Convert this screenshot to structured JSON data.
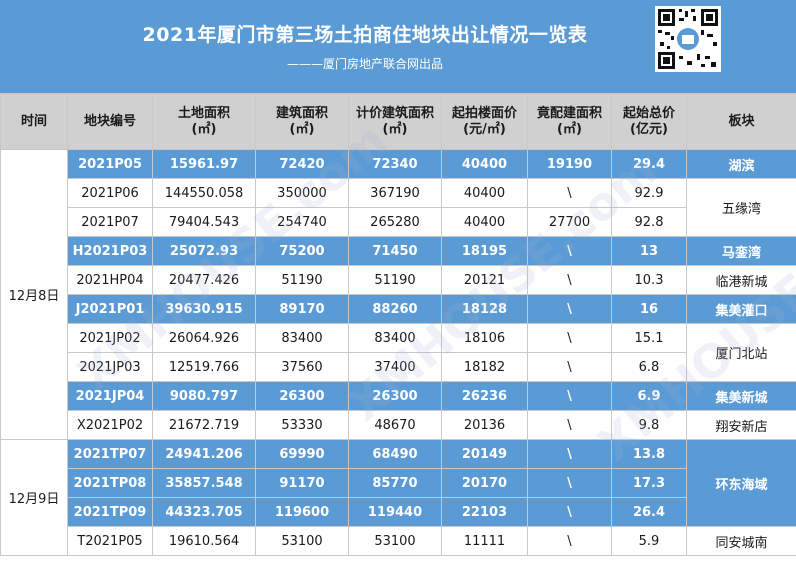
{
  "header": {
    "title": "2021年厦门市第三场土拍商住地块出让情况一览表",
    "subtitle": "———厦门房地产联合网出品"
  },
  "columns": [
    "时间",
    "地块编号",
    "土地面积\n(㎡)",
    "建筑面积\n(㎡)",
    "计价建筑面积\n(㎡)",
    "起拍楼面价\n(元/㎡)",
    "竟配建面积\n(㎡)",
    "起始总价\n(亿元)",
    "板块"
  ],
  "dates": [
    "12月8日",
    "12月9日"
  ],
  "rows": [
    {
      "id": "2021P05",
      "land": "15961.97",
      "build": "72420",
      "priced": "72340",
      "floor": "40400",
      "match": "19190",
      "total": "29.4"
    },
    {
      "id": "2021P06",
      "land": "144550.058",
      "build": "350000",
      "priced": "367190",
      "floor": "40400",
      "match": "\\",
      "total": "92.9"
    },
    {
      "id": "2021P07",
      "land": "79404.543",
      "build": "254740",
      "priced": "265280",
      "floor": "40400",
      "match": "27700",
      "total": "92.8"
    },
    {
      "id": "H2021P03",
      "land": "25072.93",
      "build": "75200",
      "priced": "71450",
      "floor": "18195",
      "match": "\\",
      "total": "13"
    },
    {
      "id": "2021HP04",
      "land": "20477.426",
      "build": "51190",
      "priced": "51190",
      "floor": "20121",
      "match": "\\",
      "total": "10.3"
    },
    {
      "id": "J2021P01",
      "land": "39630.915",
      "build": "89170",
      "priced": "88260",
      "floor": "18128",
      "match": "\\",
      "total": "16"
    },
    {
      "id": "2021JP02",
      "land": "26064.926",
      "build": "83400",
      "priced": "83400",
      "floor": "18106",
      "match": "\\",
      "total": "15.1"
    },
    {
      "id": "2021JP03",
      "land": "12519.766",
      "build": "37560",
      "priced": "37400",
      "floor": "18182",
      "match": "\\",
      "total": "6.8"
    },
    {
      "id": "2021JP04",
      "land": "9080.797",
      "build": "26300",
      "priced": "26300",
      "floor": "26236",
      "match": "\\",
      "total": "6.9"
    },
    {
      "id": "X2021P02",
      "land": "21672.719",
      "build": "53330",
      "priced": "48670",
      "floor": "20136",
      "match": "\\",
      "total": "9.8"
    },
    {
      "id": "2021TP07",
      "land": "24941.206",
      "build": "69990",
      "priced": "68490",
      "floor": "20149",
      "match": "\\",
      "total": "13.8"
    },
    {
      "id": "2021TP08",
      "land": "35857.548",
      "build": "91170",
      "priced": "85770",
      "floor": "20170",
      "match": "\\",
      "total": "17.3"
    },
    {
      "id": "2021TP09",
      "land": "44323.705",
      "build": "119600",
      "priced": "119440",
      "floor": "22103",
      "match": "\\",
      "total": "26.4"
    },
    {
      "id": "T2021P05",
      "land": "19610.564",
      "build": "53100",
      "priced": "53100",
      "floor": "11111",
      "match": "\\",
      "total": "5.9"
    }
  ],
  "plates": [
    "湖滨",
    "五缘湾",
    "马銮湾",
    "临港新城",
    "集美灌口",
    "厦门北站",
    "集美新城",
    "翔安新店",
    "环东海域",
    "同安城南"
  ],
  "colors": {
    "accent": "#5b9bd5",
    "header_gray": "#d0d0d0"
  },
  "watermark": "XMHOUSE.com"
}
